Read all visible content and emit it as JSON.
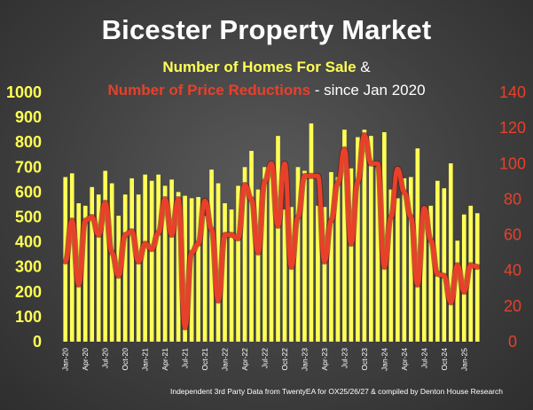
{
  "chart_data": {
    "type": "bar",
    "title": "Bicester Property Market",
    "subtitle": {
      "series1": "Number of Homes For Sale",
      "joiner": " &",
      "series2": "Number of Price Reductions",
      "suffix": " - since Jan 2020"
    },
    "footnote": "Independent 3rd Party Data from TwentyEA for OX25/26/27 & compiled by Denton House Research",
    "y_left": {
      "min": 0,
      "max": 1000,
      "ticks": [
        0,
        100,
        200,
        300,
        400,
        500,
        600,
        700,
        800,
        900,
        1000
      ],
      "color": "#ffff55"
    },
    "y_right": {
      "min": 0,
      "max": 140,
      "ticks": [
        0,
        20,
        40,
        60,
        80,
        100,
        120,
        140
      ],
      "color": "#e8402a"
    },
    "x_tick_labels": [
      "Jan-20",
      "Apr-20",
      "Jul-20",
      "Oct-20",
      "Jan-21",
      "Apr-21",
      "Jul-21",
      "Oct-21",
      "Jan-22",
      "Apr-22",
      "Jul-22",
      "Oct-22",
      "Jan-23",
      "Apr-23",
      "Jul-23",
      "Oct-23",
      "Jan-24",
      "Apr-24",
      "Jul-24",
      "Oct-24",
      "Jan-25"
    ],
    "series": [
      {
        "name": "Number of Homes For Sale",
        "type": "bar",
        "axis": "left",
        "color": "#ffff55",
        "values": [
          660,
          675,
          555,
          545,
          620,
          590,
          685,
          635,
          505,
          590,
          655,
          590,
          670,
          645,
          670,
          625,
          650,
          600,
          585,
          575,
          580,
          505,
          690,
          635,
          555,
          530,
          625,
          700,
          765,
          610,
          700,
          720,
          825,
          530,
          540,
          700,
          685,
          875,
          545,
          540,
          680,
          660,
          850,
          695,
          820,
          850,
          825,
          700,
          840,
          610,
          575,
          655,
          660,
          775,
          540,
          545,
          645,
          615,
          715,
          405,
          510,
          545,
          515
        ]
      },
      {
        "name": "Number of Price Reductions",
        "type": "line",
        "axis": "right",
        "color": "#e8402a",
        "values": [
          45,
          68,
          32,
          68,
          70,
          60,
          78,
          50,
          37,
          60,
          62,
          45,
          55,
          52,
          61,
          80,
          60,
          80,
          8,
          50,
          55,
          79,
          63,
          23,
          60,
          60,
          58,
          88,
          80,
          50,
          90,
          100,
          65,
          100,
          42,
          70,
          93,
          93,
          93,
          45,
          68,
          89,
          108,
          55,
          90,
          116,
          100,
          100,
          42,
          70,
          97,
          84,
          70,
          32,
          75,
          57,
          38,
          37,
          22,
          43,
          28,
          43,
          42
        ]
      }
    ]
  }
}
